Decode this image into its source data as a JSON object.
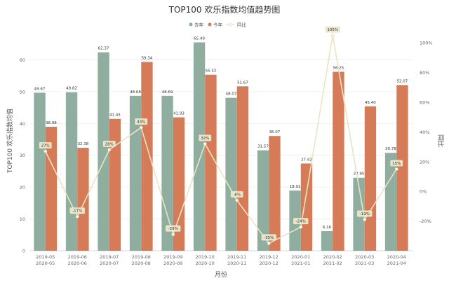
{
  "chart_data": {
    "type": "bar",
    "title": "TOP100 欢乐指数均值趋势图",
    "xlabel": "月份",
    "ylabel": "TOP100 欢乐指数均值",
    "y2label": "同比",
    "categories": [
      [
        "2019-05",
        "2020-05"
      ],
      [
        "2019-06",
        "2020-06"
      ],
      [
        "2019-07",
        "2020-07"
      ],
      [
        "2019-08",
        "2020-08"
      ],
      [
        "2019-09",
        "2020-09"
      ],
      [
        "2019-10",
        "2020-10"
      ],
      [
        "2019-11",
        "2020-11"
      ],
      [
        "2019-12",
        "2020-12"
      ],
      [
        "2020-01",
        "2021-01"
      ],
      [
        "2020-02",
        "2021-02"
      ],
      [
        "2020-03",
        "2021-03"
      ],
      [
        "2020-04",
        "2021-04"
      ]
    ],
    "series": [
      {
        "name": "去年",
        "type": "bar",
        "color": "#8fae9f",
        "values": [
          49.67,
          49.82,
          62.37,
          48.68,
          48.69,
          65.49,
          48.07,
          31.57,
          18.91,
          6.16,
          22.95,
          30.78
        ],
        "labels": [
          "49.67",
          "49.82",
          "62.37",
          "48.68",
          "48.69",
          "65.49",
          "48.07",
          "31.57",
          "18.91",
          "6.16",
          "22.95",
          "30.78"
        ]
      },
      {
        "name": "今年",
        "type": "bar",
        "color": "#d67b58",
        "values": [
          38.98,
          32.38,
          41.45,
          59.34,
          41.93,
          55.32,
          51.67,
          36.07,
          27.42,
          56.25,
          45.4,
          52.07
        ],
        "labels": [
          "38.98",
          "32.38",
          "41.45",
          "59.34",
          "41.93",
          "55.32",
          "51.67",
          "36.07",
          "27.42",
          "56.25",
          "45.40",
          "52.07"
        ]
      },
      {
        "name": "同比",
        "type": "line",
        "color": "#e8e4c4",
        "values": [
          27,
          -17,
          28,
          43,
          -29,
          32,
          -6,
          -35,
          -24,
          105,
          -19,
          15
        ],
        "labels": [
          "27%",
          "-17%",
          "28%",
          "43%",
          "-29%",
          "32%",
          "-6%",
          "-35%",
          "-24%",
          "105%",
          "-19%",
          "15%"
        ]
      }
    ],
    "ylim": [
      0,
      70
    ],
    "yticks": [
      "0",
      "10",
      "20",
      "30",
      "40",
      "50",
      "60"
    ],
    "y2lim": [
      -40,
      110
    ],
    "y2ticks": [
      "-20%",
      "0%",
      "20%",
      "40%",
      "60%",
      "80%",
      "100%"
    ],
    "grid": true,
    "legend": "top-center"
  }
}
